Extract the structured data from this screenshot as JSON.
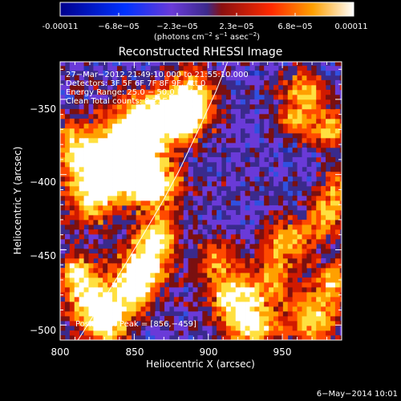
{
  "chart_data": {
    "type": "heatmap",
    "title": "Reconstructed RHESSI Image",
    "xlabel": "Heliocentric X (arcsec)",
    "ylabel": "Heliocentric Y (arcsec)",
    "xlim": [
      800,
      990
    ],
    "ylim": [
      -510,
      -325
    ],
    "x_ticks": [
      800,
      850,
      900,
      950
    ],
    "y_ticks": [
      -500,
      -450,
      -400,
      -350
    ],
    "x_tick_labels": [
      "800",
      "850",
      "900",
      "950"
    ],
    "y_tick_labels": [
      "−500",
      "−450",
      "−400",
      "−350"
    ],
    "colorbar": {
      "range": [
        -0.00011,
        0.00011
      ],
      "tick_labels": [
        "-0.00011",
        "−6.8e−05",
        "−2.3e−05",
        "2.3e−05",
        "6.8e−05",
        "0.00011"
      ],
      "unit_parts": [
        "(photons cm",
        "−2",
        " s",
        "−1",
        " asec",
        "−2",
        ")"
      ]
    },
    "annotations": [
      "27−Mar−2012 21:49:10.000 to 21:55:10.000",
      "Detectors: 3F 5F 6F 7F 8F 9F, Att 0",
      "Energy Range: 25.0 − 50.0 keV",
      "Clean    Total counts: 8.21E+03"
    ],
    "position_of_peak": "Position of Peak = [856,−459]",
    "limb_curve": [
      [
        812,
        -510
      ],
      [
        830,
        -482
      ],
      [
        845,
        -458
      ],
      [
        856,
        -440
      ],
      [
        868,
        -420
      ],
      [
        880,
        -398
      ],
      [
        893,
        -371
      ],
      [
        905,
        -345
      ],
      [
        913,
        -325
      ]
    ],
    "emission_blobs": [
      [
        826,
        -398,
        14,
        1.0
      ],
      [
        848,
        -395,
        14,
        0.95
      ],
      [
        850,
        -370,
        14,
        0.9
      ],
      [
        870,
        -360,
        12,
        0.85
      ],
      [
        885,
        -363,
        10,
        0.85
      ],
      [
        865,
        -408,
        12,
        0.7
      ],
      [
        890,
        -345,
        10,
        0.75
      ],
      [
        810,
        -380,
        12,
        0.6
      ],
      [
        820,
        -420,
        10,
        0.55
      ],
      [
        857,
        -459,
        11,
        1.0
      ],
      [
        848,
        -478,
        10,
        0.85
      ],
      [
        866,
        -440,
        9,
        0.7
      ],
      [
        822,
        -485,
        11,
        0.9
      ],
      [
        812,
        -465,
        9,
        0.75
      ],
      [
        833,
        -500,
        10,
        0.8
      ],
      [
        965,
        -345,
        10,
        0.7
      ],
      [
        982,
        -370,
        9,
        0.75
      ],
      [
        987,
        -410,
        9,
        0.6
      ],
      [
        952,
        -445,
        11,
        0.7
      ],
      [
        978,
        -430,
        9,
        0.6
      ],
      [
        918,
        -480,
        13,
        0.85
      ],
      [
        930,
        -500,
        11,
        0.8
      ],
      [
        970,
        -495,
        12,
        0.8
      ],
      [
        985,
        -470,
        9,
        0.7
      ],
      [
        945,
        -470,
        8,
        0.55
      ],
      [
        905,
        -455,
        8,
        0.5
      ],
      [
        958,
        -365,
        7,
        0.55
      ]
    ]
  },
  "timestamp": "6−May−2014 10:01"
}
